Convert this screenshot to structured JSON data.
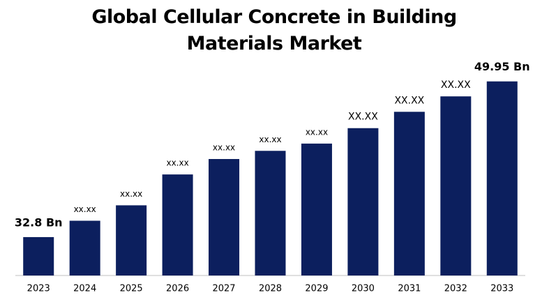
{
  "chart_data": {
    "type": "bar",
    "title": "Global Cellular Concrete in Building Materials Market",
    "categories": [
      "2023",
      "2024",
      "2025",
      "2026",
      "2027",
      "2028",
      "2029",
      "2030",
      "2031",
      "2032",
      "2033"
    ],
    "values": [
      32.8,
      34.6,
      36.3,
      39.7,
      41.4,
      42.3,
      43.1,
      44.8,
      46.6,
      48.3,
      49.95
    ],
    "value_labels": [
      "32.8 Bn",
      "xx.xx",
      "xx.xx",
      "xx.xx",
      "xx.xx",
      "xx.xx",
      "xx.xx",
      "XX.XX",
      "XX.XX",
      "XX.XX",
      "49.95 Bn"
    ],
    "color": "#0c1f5e",
    "ylim": [
      28.57,
      53
    ]
  }
}
